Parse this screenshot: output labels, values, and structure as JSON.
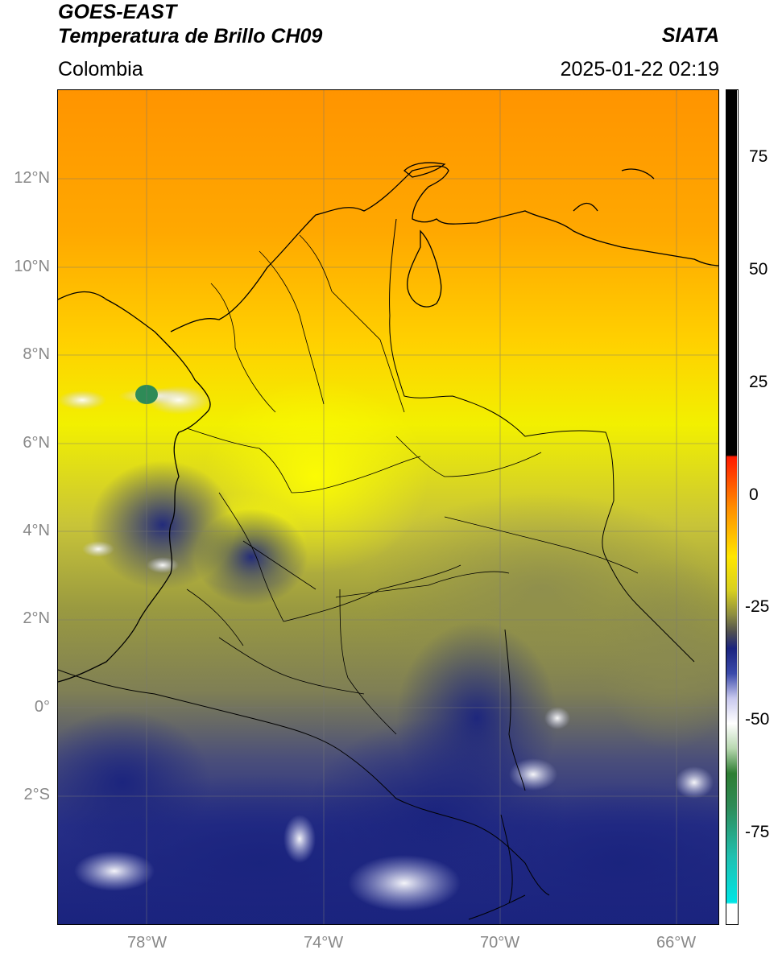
{
  "header": {
    "satellite": "GOES-EAST",
    "product": "Temperatura de Brillo CH09",
    "region": "Colombia",
    "brand": "SIATA",
    "timestamp": "2025-01-22 02:19"
  },
  "map": {
    "lat_labels": [
      "12°N",
      "10°N",
      "8°N",
      "6°N",
      "4°N",
      "2°N",
      "0°",
      "2°S"
    ],
    "lon_labels": [
      "78°W",
      "74°W",
      "70°W",
      "66°W"
    ],
    "lon_range": [
      -80,
      -65
    ],
    "lat_range": [
      -4.9,
      14.0
    ],
    "colors": {
      "warm_north": "#ff9a00",
      "mid": "#ffe000",
      "olive": "#8c8c3a",
      "cold_cloud": "#1f2a8c",
      "white_top": "#e8e8ff",
      "green_top": "#2e8b57"
    }
  },
  "colorbar": {
    "labels": [
      "75",
      "50",
      "25",
      "0",
      "-25",
      "-50",
      "-75"
    ],
    "values": [
      75,
      50,
      25,
      0,
      -25,
      -50,
      -75
    ],
    "range": [
      -95,
      90
    ]
  }
}
